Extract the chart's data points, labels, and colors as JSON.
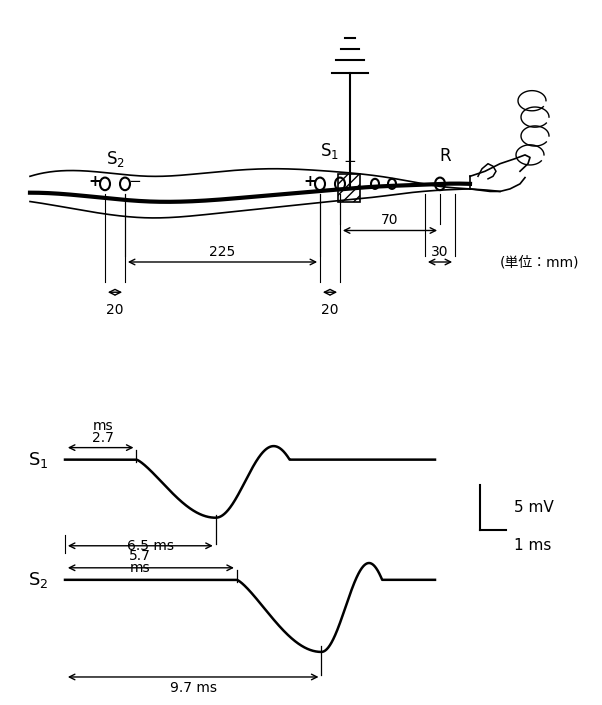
{
  "bg_color": "#ffffff",
  "diagram": {
    "unit_label": "(単位：mm)",
    "dim_225": "225",
    "dim_70": "70",
    "dim_30": "30",
    "dim_20": "20",
    "s1_label": "S$_1$",
    "s2_label": "S$_2$",
    "r_label": "R"
  },
  "waveform": {
    "onset1": 2.7,
    "peak1": 5.7,
    "onset2": 6.5,
    "peak2": 9.7,
    "label_57": "5.7",
    "label_ms1": "ms",
    "label_27": "2.7",
    "label_ms2": "ms",
    "label_97": "9.7 ms",
    "label_65": "6.5 ms",
    "scale_mv": "5 mV",
    "scale_ms": "1 ms",
    "s1_label": "S$_1$",
    "s2_label": "S$_2$"
  }
}
